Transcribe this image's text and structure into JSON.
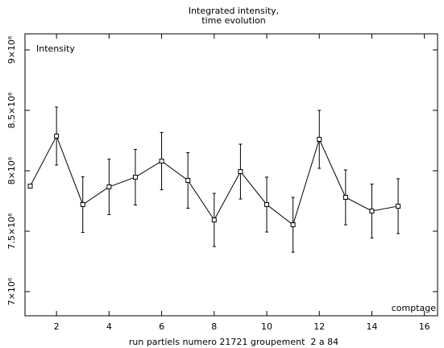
{
  "chart_data": {
    "type": "errorbar",
    "title": [
      "Integrated intensity,",
      "time evolution"
    ],
    "y_label": "Intensity",
    "x_corner_label": "comptage",
    "x_label": "run partiels numero 21721 groupement  2 a 84",
    "x": [
      1,
      2,
      3,
      4,
      5,
      6,
      7,
      8,
      9,
      10,
      11,
      12,
      13,
      14,
      15
    ],
    "series": [
      {
        "color": "#000000",
        "values": [
          7873000,
          8287000,
          7720000,
          7867000,
          7947000,
          8080000,
          7920000,
          7593000,
          7993000,
          7720000,
          7553000,
          8260000,
          7780000,
          7667000,
          7707000
        ],
        "errors": [
          null,
          240000,
          230000,
          230000,
          230000,
          237000,
          230000,
          220000,
          227000,
          227000,
          227000,
          240000,
          227000,
          223000,
          227000
        ]
      }
    ],
    "xlim": [
      0.8,
      16.5
    ],
    "xticks": [
      2,
      4,
      6,
      8,
      10,
      12,
      14,
      16
    ],
    "ylim": [
      6800000,
      9133000
    ],
    "yticks": [
      {
        "value": 7000000,
        "label": "7×10⁶"
      },
      {
        "value": 7500000,
        "label": "7.5×10⁶"
      },
      {
        "value": 8000000,
        "label": "8×10⁶"
      },
      {
        "value": 8500000,
        "label": "8.5×10⁶"
      },
      {
        "value": 9000000,
        "label": "9×10⁶"
      }
    ]
  }
}
